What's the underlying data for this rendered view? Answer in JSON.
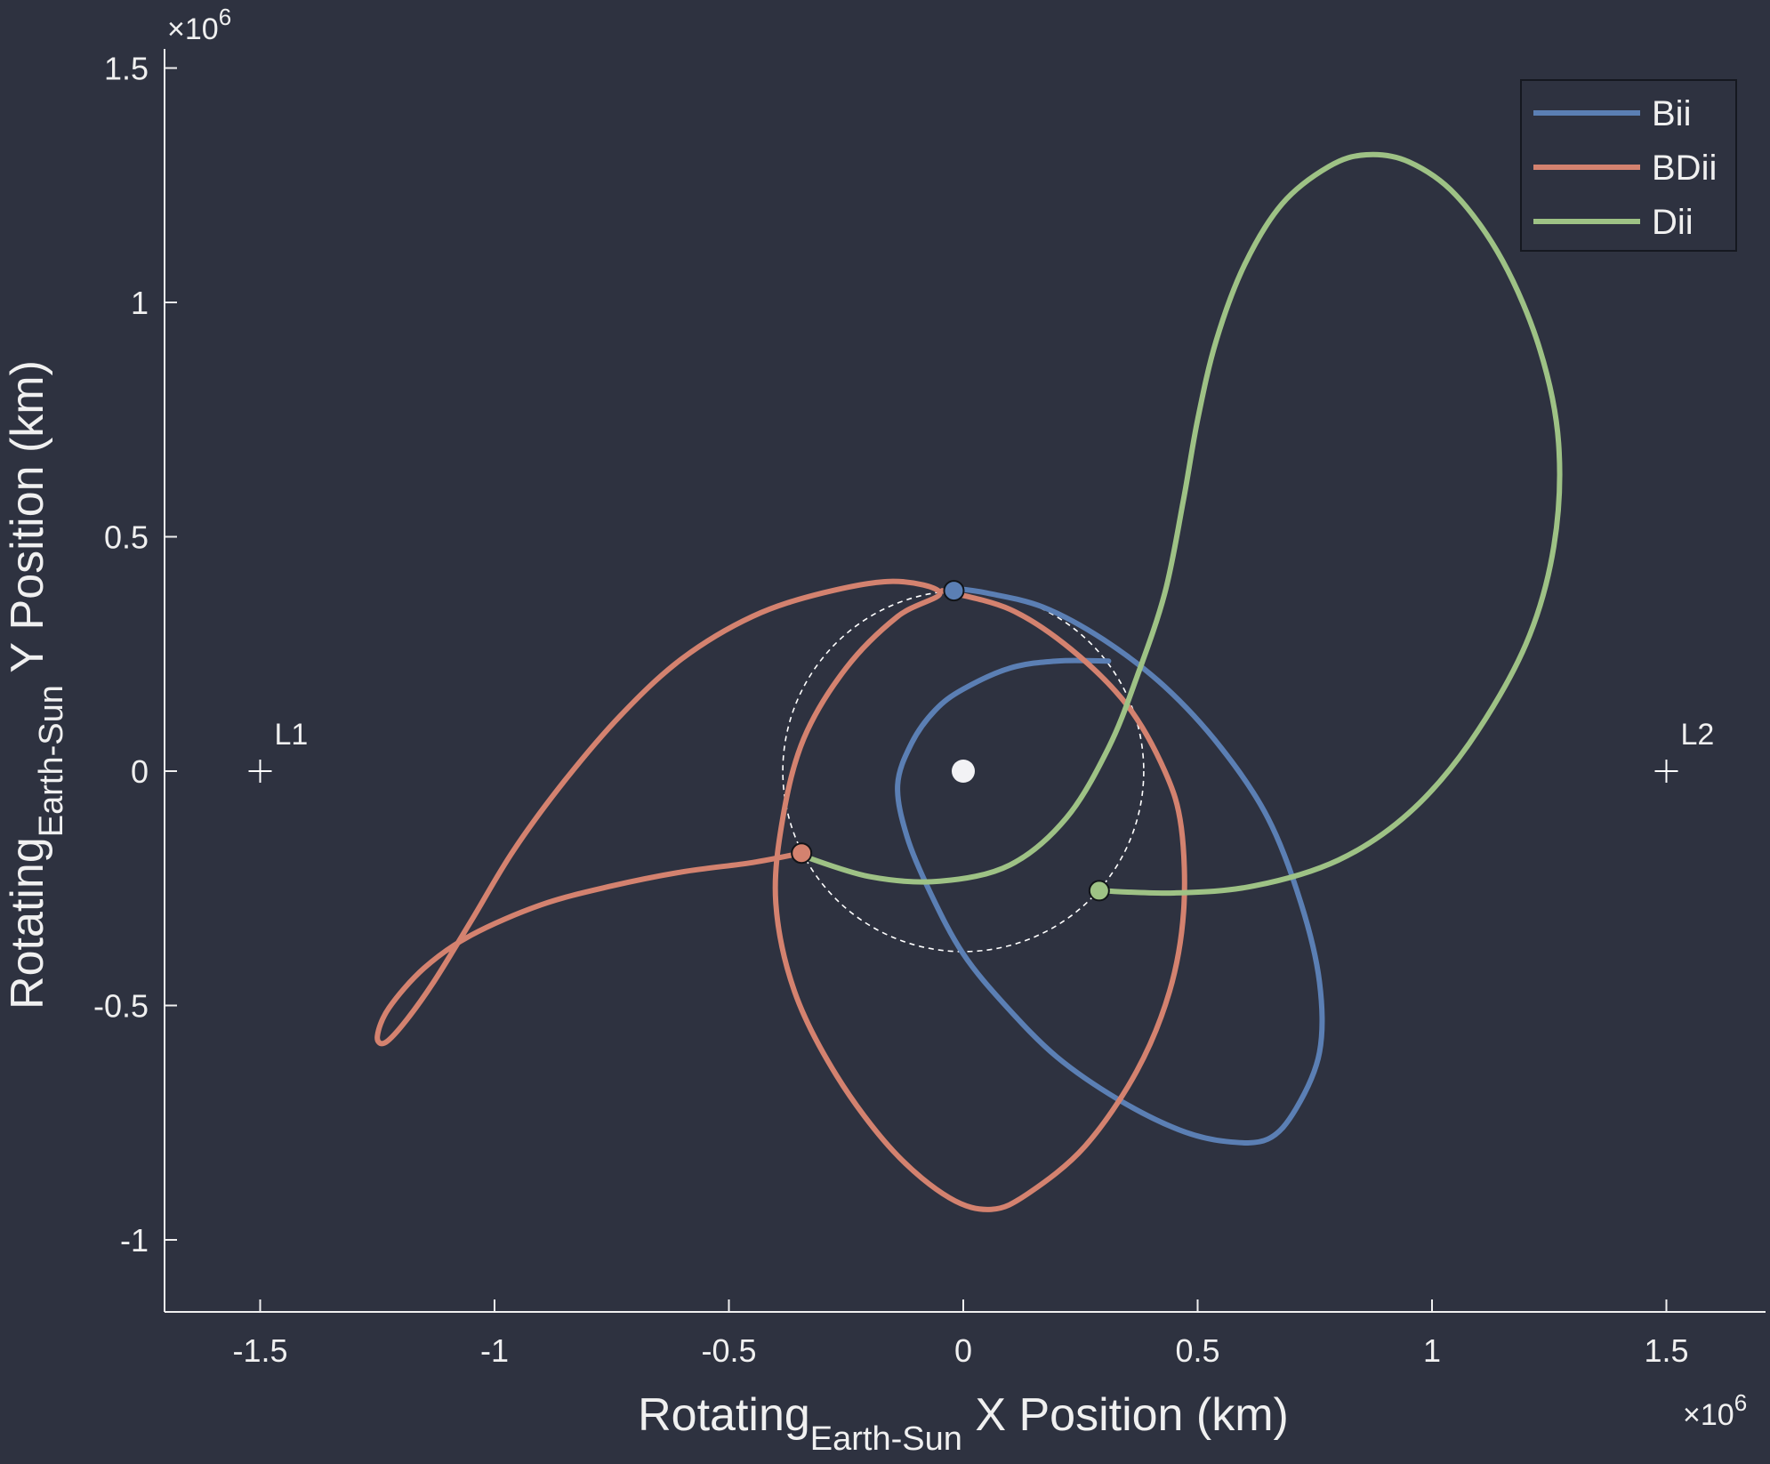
{
  "chart_data": {
    "type": "line",
    "title": "",
    "xlabel": {
      "main": "Rotating",
      "sub": "Earth-Sun",
      "rest": " X Position (km)"
    },
    "ylabel": {
      "main": "Rotating",
      "sub": "Earth-Sun",
      "rest": " Y Position (km)"
    },
    "x_multiplier": {
      "base": "×10",
      "exp": "6"
    },
    "y_multiplier": {
      "base": "×10",
      "exp": "6"
    },
    "xlim": [
      -1.7,
      1.7
    ],
    "ylim": [
      -1.16,
      1.55
    ],
    "xticks": [
      -1.5,
      -1,
      -0.5,
      0,
      0.5,
      1,
      1.5
    ],
    "xtick_labels": [
      "-1.5",
      "-1",
      "-0.5",
      "0",
      "0.5",
      "1",
      "1.5"
    ],
    "yticks": [
      -1,
      -0.5,
      0,
      0.5,
      1,
      1.5
    ],
    "ytick_labels": [
      "-1",
      "-0.5",
      "0",
      "0.5",
      "1",
      "1.5"
    ],
    "grid": false,
    "legend_position": "top-right",
    "series": [
      {
        "name": "Bii",
        "color": "#5b7fb4",
        "points": [
          [
            0.31,
            0.235
          ],
          [
            0.2,
            0.235
          ],
          [
            0.1,
            0.22
          ],
          [
            0.0,
            0.175
          ],
          [
            -0.06,
            0.13
          ],
          [
            -0.11,
            0.06
          ],
          [
            -0.14,
            -0.03
          ],
          [
            -0.12,
            -0.14
          ],
          [
            -0.07,
            -0.26
          ],
          [
            0.0,
            -0.39
          ],
          [
            0.09,
            -0.5
          ],
          [
            0.2,
            -0.61
          ],
          [
            0.33,
            -0.7
          ],
          [
            0.46,
            -0.765
          ],
          [
            0.56,
            -0.79
          ],
          [
            0.65,
            -0.785
          ],
          [
            0.71,
            -0.72
          ],
          [
            0.76,
            -0.6
          ],
          [
            0.76,
            -0.45
          ],
          [
            0.72,
            -0.28
          ],
          [
            0.65,
            -0.1
          ],
          [
            0.55,
            0.05
          ],
          [
            0.43,
            0.18
          ],
          [
            0.3,
            0.28
          ],
          [
            0.17,
            0.35
          ],
          [
            0.05,
            0.38
          ],
          [
            -0.02,
            0.39
          ]
        ],
        "marker": [
          -0.02,
          0.385
        ]
      },
      {
        "name": "BDii",
        "color": "#d4826f",
        "points": [
          [
            -0.045,
            0.385
          ],
          [
            0.1,
            0.345
          ],
          [
            0.23,
            0.26
          ],
          [
            0.35,
            0.14
          ],
          [
            0.43,
            0.0
          ],
          [
            0.465,
            -0.12
          ],
          [
            0.47,
            -0.3
          ],
          [
            0.44,
            -0.47
          ],
          [
            0.37,
            -0.64
          ],
          [
            0.26,
            -0.8
          ],
          [
            0.14,
            -0.9
          ],
          [
            0.06,
            -0.935
          ],
          [
            -0.03,
            -0.91
          ],
          [
            -0.15,
            -0.81
          ],
          [
            -0.27,
            -0.65
          ],
          [
            -0.36,
            -0.47
          ],
          [
            -0.4,
            -0.28
          ],
          [
            -0.385,
            -0.1
          ],
          [
            -0.34,
            0.07
          ],
          [
            -0.25,
            0.22
          ],
          [
            -0.14,
            0.33
          ],
          [
            -0.05,
            0.38
          ],
          [
            -0.15,
            0.405
          ],
          [
            -0.3,
            0.38
          ],
          [
            -0.45,
            0.33
          ],
          [
            -0.6,
            0.24
          ],
          [
            -0.73,
            0.12
          ],
          [
            -0.85,
            -0.02
          ],
          [
            -0.96,
            -0.17
          ],
          [
            -1.05,
            -0.32
          ],
          [
            -1.13,
            -0.45
          ],
          [
            -1.195,
            -0.54
          ],
          [
            -1.235,
            -0.58
          ],
          [
            -1.25,
            -0.565
          ],
          [
            -1.225,
            -0.505
          ],
          [
            -1.15,
            -0.42
          ],
          [
            -1.05,
            -0.35
          ],
          [
            -0.9,
            -0.285
          ],
          [
            -0.75,
            -0.245
          ],
          [
            -0.6,
            -0.215
          ],
          [
            -0.45,
            -0.195
          ],
          [
            -0.345,
            -0.175
          ]
        ],
        "marker": [
          -0.345,
          -0.175
        ]
      },
      {
        "name": "Dii",
        "color": "#9ec285",
        "points": [
          [
            -0.345,
            -0.18
          ],
          [
            -0.2,
            -0.225
          ],
          [
            -0.05,
            -0.235
          ],
          [
            0.1,
            -0.2
          ],
          [
            0.22,
            -0.1
          ],
          [
            0.31,
            0.05
          ],
          [
            0.37,
            0.2
          ],
          [
            0.43,
            0.38
          ],
          [
            0.47,
            0.58
          ],
          [
            0.5,
            0.75
          ],
          [
            0.54,
            0.92
          ],
          [
            0.6,
            1.08
          ],
          [
            0.68,
            1.21
          ],
          [
            0.78,
            1.29
          ],
          [
            0.86,
            1.315
          ],
          [
            0.95,
            1.3
          ],
          [
            1.05,
            1.23
          ],
          [
            1.15,
            1.09
          ],
          [
            1.23,
            0.9
          ],
          [
            1.27,
            0.7
          ],
          [
            1.26,
            0.48
          ],
          [
            1.2,
            0.27
          ],
          [
            1.08,
            0.06
          ],
          [
            0.95,
            -0.09
          ],
          [
            0.8,
            -0.19
          ],
          [
            0.62,
            -0.245
          ],
          [
            0.45,
            -0.26
          ],
          [
            0.29,
            -0.255
          ]
        ],
        "marker": [
          0.29,
          -0.255
        ]
      }
    ],
    "reference_circle": {
      "center": [
        0,
        0
      ],
      "radius": 0.385
    },
    "central_body": [
      0,
      0
    ],
    "lagrange_points": [
      {
        "label": "L1",
        "x": -1.5,
        "y": 0
      },
      {
        "label": "L2",
        "x": 1.5,
        "y": 0
      }
    ]
  }
}
